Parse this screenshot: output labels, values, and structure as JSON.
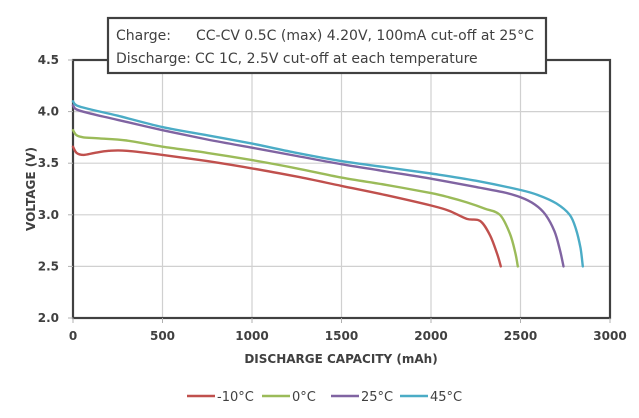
{
  "chart_data": {
    "type": "line",
    "title": "",
    "xlabel": "DISCHARGE CAPACITY (mAh)",
    "ylabel": "VOLTAGE (V)",
    "xlim": [
      0,
      3000
    ],
    "ylim": [
      2.0,
      4.5
    ],
    "xticks": [
      "0",
      "500",
      "1000",
      "1500",
      "2000",
      "2500",
      "3000"
    ],
    "yticks": [
      "2.0",
      "2.5",
      "3.0",
      "3.5",
      "4.0",
      "4.5"
    ],
    "grid": true,
    "legend_position": "bottom",
    "annotation": {
      "line1_label": "Charge:",
      "line1_text": "CC-CV 0.5C (max) 4.20V, 100mA cut-off at 25°C",
      "line2_label": "Discharge:",
      "line2_text": "CC 1C, 2.5V cut-off at each temperature"
    },
    "series": [
      {
        "name": "-10°C",
        "color": "#C0504D",
        "x": [
          0,
          20,
          60,
          120,
          200,
          300,
          500,
          750,
          1000,
          1250,
          1500,
          1750,
          2000,
          2100,
          2200,
          2275,
          2330,
          2370,
          2390
        ],
        "y": [
          3.66,
          3.6,
          3.58,
          3.6,
          3.62,
          3.62,
          3.58,
          3.52,
          3.45,
          3.37,
          3.28,
          3.19,
          3.09,
          3.04,
          2.96,
          3.0,
          2.8,
          2.62,
          2.5
        ]
      },
      {
        "name": "0°C",
        "color": "#9BBB59",
        "x": [
          0,
          20,
          60,
          150,
          300,
          500,
          750,
          1000,
          1250,
          1500,
          1750,
          2000,
          2100,
          2200,
          2300,
          2385,
          2440,
          2470,
          2485
        ],
        "y": [
          3.82,
          3.77,
          3.75,
          3.74,
          3.72,
          3.66,
          3.6,
          3.53,
          3.45,
          3.36,
          3.29,
          3.21,
          3.17,
          3.12,
          3.06,
          3.0,
          2.82,
          2.64,
          2.5
        ]
      },
      {
        "name": "25°C",
        "color": "#8064A2",
        "x": [
          0,
          20,
          100,
          250,
          500,
          750,
          1000,
          1250,
          1500,
          1750,
          2000,
          2250,
          2400,
          2500,
          2580,
          2640,
          2690,
          2720,
          2740
        ],
        "y": [
          4.06,
          4.02,
          3.98,
          3.92,
          3.82,
          3.73,
          3.65,
          3.57,
          3.49,
          3.42,
          3.35,
          3.27,
          3.22,
          3.17,
          3.1,
          3.0,
          2.84,
          2.66,
          2.5
        ]
      },
      {
        "name": "45°C",
        "color": "#4BACC6",
        "x": [
          0,
          20,
          100,
          250,
          500,
          750,
          1000,
          1250,
          1500,
          1750,
          2000,
          2250,
          2500,
          2600,
          2700,
          2775,
          2810,
          2835,
          2848
        ],
        "y": [
          4.1,
          4.06,
          4.02,
          3.96,
          3.85,
          3.77,
          3.69,
          3.6,
          3.52,
          3.46,
          3.4,
          3.33,
          3.24,
          3.19,
          3.11,
          3.0,
          2.86,
          2.68,
          2.5
        ]
      }
    ]
  }
}
